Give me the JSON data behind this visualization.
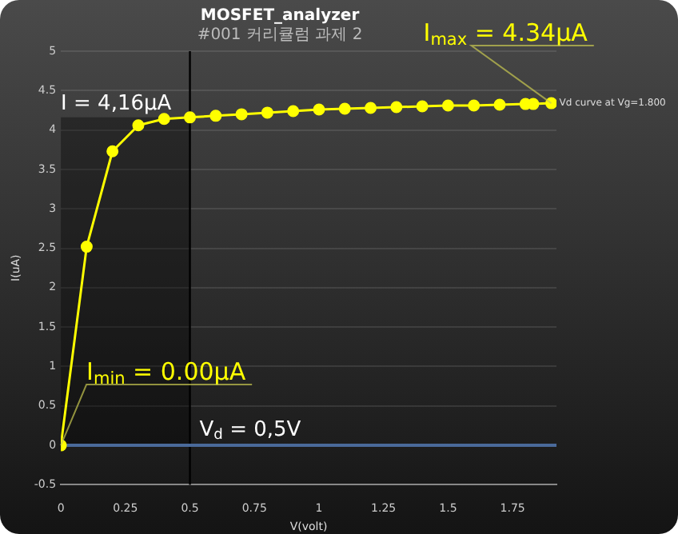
{
  "chart_data": {
    "type": "line",
    "title": "MOSFET_analyzer",
    "subtitle": "#001 커리큘럼 과제 2",
    "xlabel": "V(volt)",
    "ylabel": "I(uA)",
    "series": [
      {
        "name": "Vd curve at Vg=1.800",
        "color": "#ffff00",
        "x": [
          0,
          0.1,
          0.2,
          0.3,
          0.4,
          0.5,
          0.6,
          0.7,
          0.8,
          0.9,
          1.0,
          1.1,
          1.2,
          1.3,
          1.4,
          1.5,
          1.6,
          1.7,
          1.8,
          1.83,
          1.9
        ],
        "values": [
          0,
          2.52,
          3.73,
          4.06,
          4.14,
          4.16,
          4.18,
          4.2,
          4.22,
          4.24,
          4.26,
          4.27,
          4.28,
          4.29,
          4.3,
          4.31,
          4.31,
          4.32,
          4.33,
          4.33,
          4.34
        ]
      }
    ],
    "xlim": [
      0,
      1.92
    ],
    "xticks": [
      0,
      0.25,
      0.5,
      0.75,
      1,
      1.25,
      1.5,
      1.75
    ],
    "ylim": [
      -0.5,
      5
    ],
    "yticks": [
      -0.5,
      0,
      0.5,
      1,
      1.5,
      2,
      2.5,
      3,
      3.5,
      4,
      4.5,
      5
    ],
    "bands": [
      {
        "axis": "x",
        "from": 0,
        "to": 0.5,
        "color": "#000000"
      }
    ],
    "ref_lines": [
      {
        "axis": "x",
        "value": 0.5,
        "label": "V$_{d}$ = 0,5V",
        "color": "#000000"
      },
      {
        "axis": "y",
        "value": 0,
        "color": "#4a6a9a"
      }
    ],
    "annotations": [
      {
        "text": "I = 4,16μA",
        "x": 0.5,
        "y": 4.16
      },
      {
        "text": "I$_{max}$ = 4.34μA",
        "x": 1.9,
        "y": 4.34
      },
      {
        "text": "I$_{min}$ = 0.00μA",
        "x": 0,
        "y": 0
      }
    ],
    "grid": "y",
    "marker": "circle",
    "line_style": "solid",
    "legend": false
  }
}
